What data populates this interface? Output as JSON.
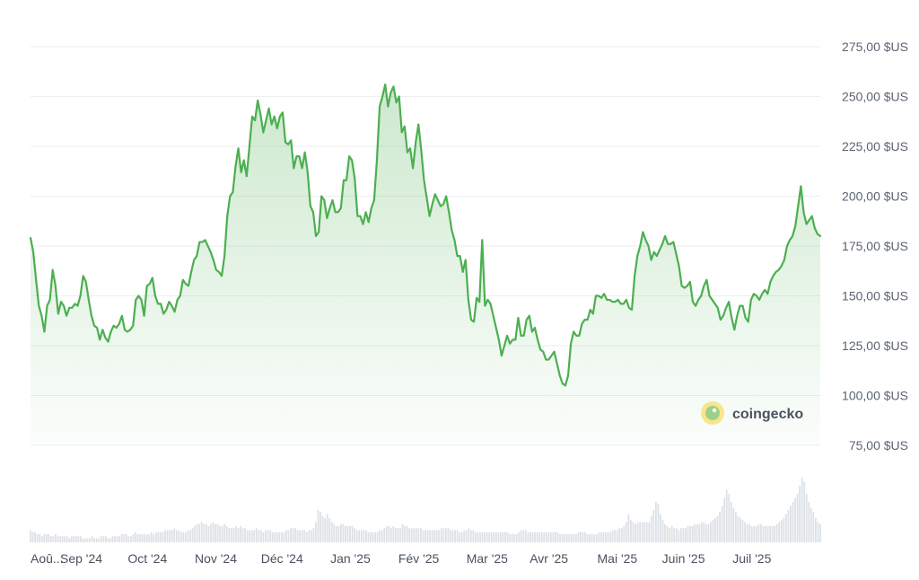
{
  "chart_data": {
    "type": "area",
    "y_unit": "$US",
    "ylim": [
      75,
      275
    ],
    "y_ticks": [
      "275,00 $US",
      "250,00 $US",
      "225,00 $US",
      "200,00 $US",
      "175,00 $US",
      "150,00 $US",
      "125,00 $US",
      "100,00 $US",
      "75,00 $US"
    ],
    "y_tick_values": [
      275,
      250,
      225,
      200,
      175,
      150,
      125,
      100,
      75
    ],
    "x_ticks": [
      "Aoû...",
      "Sep '24",
      "Oct '24",
      "Nov '24",
      "Déc '24",
      "Jan '25",
      "Fév '25",
      "Mar '25",
      "Avr '25",
      "Mai '25",
      "Juin '25",
      "Juil '25"
    ],
    "x_tick_day_index": [
      0,
      23,
      53,
      84,
      114,
      145,
      176,
      207,
      235,
      266,
      296,
      327
    ],
    "x_range_days": [
      0,
      358
    ],
    "grid": true,
    "line_color": "#4caf50",
    "fill_color": "#4caf50",
    "series": [
      {
        "values": [
          179,
          172,
          158,
          145,
          140,
          132,
          145,
          148,
          163,
          155,
          141,
          147,
          145,
          140,
          144,
          144,
          146,
          145,
          150,
          160,
          157,
          148,
          140,
          135,
          134,
          128,
          133,
          129,
          127,
          132,
          135,
          134,
          136,
          140,
          133,
          132,
          133,
          135,
          148,
          150,
          148,
          140,
          155,
          156,
          159,
          150,
          146,
          146,
          141,
          143,
          147,
          145,
          142,
          148,
          150,
          158,
          156,
          155,
          162,
          168,
          170,
          177,
          177,
          178,
          175,
          172,
          168,
          163,
          162,
          160,
          170,
          190,
          200,
          202,
          215,
          224,
          212,
          218,
          210,
          225,
          240,
          238,
          248,
          241,
          232,
          238,
          244,
          236,
          240,
          234,
          240,
          242,
          227,
          226,
          228,
          214,
          220,
          220,
          214,
          222,
          212,
          195,
          192,
          180,
          182,
          200,
          198,
          189,
          194,
          198,
          192,
          192,
          194,
          208,
          208,
          220,
          218,
          209,
          190,
          190,
          186,
          192,
          187,
          194,
          198,
          218,
          245,
          250,
          256,
          245,
          252,
          255,
          247,
          250,
          232,
          235,
          222,
          224,
          214,
          227,
          236,
          223,
          208,
          199,
          190,
          196,
          201,
          198,
          195,
          196,
          200,
          192,
          183,
          178,
          170,
          170,
          162,
          168,
          148,
          138,
          137,
          149,
          147,
          178,
          145,
          148,
          146,
          140,
          134,
          128,
          120,
          125,
          130,
          126,
          128,
          128,
          139,
          130,
          130,
          138,
          140,
          132,
          134,
          128,
          123,
          122,
          118,
          118,
          120,
          122,
          116,
          110,
          106,
          105,
          110,
          126,
          132,
          130,
          130,
          136,
          138,
          138,
          143,
          141,
          150,
          150,
          149,
          151,
          148,
          148,
          147,
          147,
          148,
          146,
          146,
          148,
          144,
          143,
          160,
          170,
          175,
          182,
          178,
          175,
          168,
          172,
          170,
          173,
          176,
          180,
          176,
          176,
          177,
          171,
          165,
          155,
          154,
          155,
          157,
          147,
          145,
          148,
          150,
          155,
          158,
          150,
          148,
          146,
          144,
          138,
          140,
          144,
          147,
          139,
          133,
          140,
          145,
          145,
          139,
          137,
          148,
          151,
          150,
          148,
          151,
          153,
          151,
          157,
          160,
          162,
          163,
          165,
          168,
          175,
          178,
          180,
          185,
          195,
          205,
          192,
          186,
          188,
          190,
          184,
          181,
          180
        ]
      }
    ],
    "volume": [
      6,
      5,
      5,
      4,
      4,
      3,
      4,
      4,
      4,
      3,
      3,
      4,
      3,
      3,
      3,
      3,
      3,
      2,
      3,
      3,
      3,
      3,
      3,
      2,
      2,
      2,
      2,
      3,
      2,
      2,
      2,
      3,
      3,
      3,
      2,
      2,
      3,
      3,
      3,
      3,
      4,
      4,
      4,
      3,
      3,
      4,
      5,
      4,
      4,
      4,
      4,
      4,
      4,
      5,
      4,
      5,
      5,
      5,
      5,
      6,
      6,
      6,
      6,
      7,
      6,
      6,
      5,
      5,
      5,
      6,
      6,
      7,
      8,
      9,
      9,
      10,
      9,
      9,
      8,
      9,
      10,
      9,
      9,
      8,
      8,
      9,
      8,
      7,
      7,
      7,
      8,
      7,
      8,
      7,
      7,
      6,
      6,
      6,
      6,
      7,
      6,
      6,
      5,
      6,
      6,
      6,
      5,
      5,
      5,
      5,
      5,
      5,
      6,
      6,
      7,
      7,
      7,
      6,
      6,
      6,
      6,
      5,
      6,
      6,
      7,
      10,
      16,
      15,
      13,
      12,
      14,
      12,
      10,
      9,
      8,
      8,
      9,
      9,
      8,
      8,
      8,
      8,
      7,
      6,
      6,
      6,
      6,
      6,
      5,
      5,
      5,
      5,
      5,
      6,
      6,
      7,
      8,
      8,
      7,
      8,
      7,
      7,
      7,
      9,
      8,
      8,
      7,
      7,
      7,
      7,
      7,
      7,
      6,
      6,
      6,
      6,
      6,
      6,
      6,
      6,
      7,
      7,
      7,
      7,
      6,
      6,
      6,
      6,
      5,
      5,
      6,
      6,
      7,
      6,
      6,
      5,
      5,
      5,
      5,
      5,
      5,
      5,
      5,
      5,
      5,
      5,
      5,
      5,
      5,
      5,
      4,
      4,
      4,
      4,
      5,
      6,
      6,
      6,
      5,
      5,
      5,
      5,
      5,
      5,
      5,
      5,
      5,
      5,
      5,
      5,
      5,
      5,
      4,
      4,
      4,
      4,
      4,
      4,
      4,
      4,
      5,
      5,
      5,
      5,
      4,
      4,
      4,
      4,
      4,
      5,
      5,
      5,
      5,
      5,
      5,
      6,
      6,
      6,
      7,
      7,
      8,
      10,
      14,
      11,
      10,
      9,
      10,
      10,
      10,
      10,
      10,
      10,
      13,
      16,
      20,
      19,
      14,
      11,
      9,
      8,
      7,
      8,
      7,
      7,
      6,
      7,
      7,
      7,
      8,
      8,
      8,
      9,
      9,
      9,
      10,
      10,
      9,
      9,
      10,
      11,
      12,
      13,
      15,
      18,
      22,
      26,
      24,
      20,
      17,
      15,
      13,
      12,
      11,
      10,
      9,
      9,
      8,
      8,
      8,
      9,
      9,
      8,
      8,
      8,
      8,
      8,
      8,
      9,
      10,
      11,
      12,
      14,
      16,
      18,
      20,
      22,
      24,
      28,
      32,
      30,
      24,
      20,
      17,
      15,
      12,
      10,
      9
    ]
  },
  "watermark": {
    "text": "coingecko"
  }
}
